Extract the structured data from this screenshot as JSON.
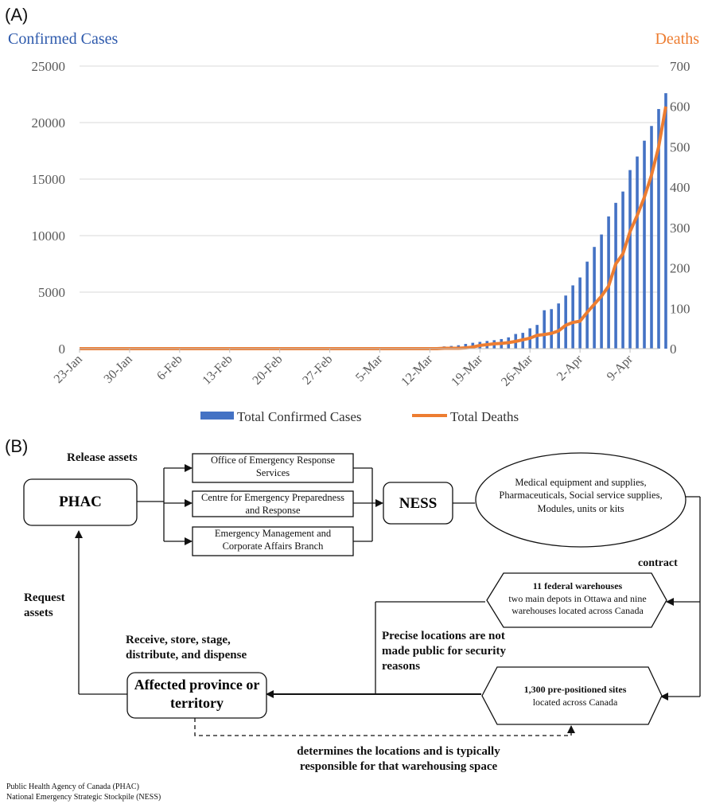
{
  "panel_a_label": "(A)",
  "panel_b_label": "(B)",
  "chart_data": {
    "type": "bar+line",
    "left_axis_title": "Confirmed Cases",
    "right_axis_title": "Deaths",
    "left_ylim": [
      0,
      25000
    ],
    "left_ticks": [
      0,
      5000,
      10000,
      15000,
      20000,
      25000
    ],
    "right_ylim": [
      0,
      700
    ],
    "right_ticks": [
      0,
      100,
      200,
      300,
      400,
      500,
      600,
      700
    ],
    "x_tick_labels": [
      "23-Jan",
      "30-Jan",
      "6-Feb",
      "13-Feb",
      "20-Feb",
      "27-Feb",
      "5-Mar",
      "12-Mar",
      "19-Mar",
      "26-Mar",
      "2-Apr",
      "9-Apr"
    ],
    "grid": true,
    "legend_position": "bottom",
    "colors": {
      "cases": "#4472C4",
      "deaths": "#ED7D31",
      "left_title": "#2E5AAC",
      "right_title": "#ED7D31"
    },
    "series": [
      {
        "name": "Total Confirmed Cases",
        "kind": "bar",
        "start_date": "2020-03-14",
        "values": [
          200,
          240,
          300,
          420,
          520,
          600,
          680,
          750,
          850,
          1000,
          1300,
          1400,
          1800,
          2100,
          3400,
          3500,
          4000,
          4700,
          5600,
          6300,
          7700,
          9000,
          10100,
          11700,
          12900,
          13900,
          15800,
          17000,
          18400,
          19700,
          21200,
          22600
        ]
      },
      {
        "name": "Total Deaths",
        "kind": "line",
        "start_date": "2020-03-14",
        "values": [
          1,
          1,
          1,
          2,
          4,
          8,
          10,
          12,
          13,
          15,
          18,
          22,
          26,
          33,
          35,
          38,
          44,
          58,
          65,
          68,
          90,
          110,
          130,
          155,
          210,
          235,
          290,
          330,
          375,
          430,
          500,
          600
        ]
      }
    ]
  },
  "diagram": {
    "release_assets": "Release assets",
    "phac": "PHAC",
    "office_1": "Office of Emergency Response Services",
    "office_2": "Centre for Emergency Preparedness and Response",
    "office_3": "Emergency Management and Corporate Affairs Branch",
    "ness": "NESS",
    "supplies": "Medical equipment and supplies, Pharmaceuticals, Social service supplies, Modules, units or kits",
    "contract": "contract",
    "warehouses_title": "11 federal warehouses",
    "warehouses_desc": "two main depots in Ottawa and nine warehouses located across Canada",
    "request_assets": "Request assets",
    "receive": "Receive, store, stage, distribute, and dispense",
    "precise": "Precise locations are not made public for security reasons",
    "province": "Affected province or territory",
    "sites_title": "1,300 pre-positioned sites",
    "sites_desc": "located across Canada",
    "determines": "determines the locations and is typically responsible for that warehousing space"
  },
  "footnotes": [
    "Public Health Agency of Canada  (PHAC)",
    "National Emergency Strategic Stockpile  (NESS)"
  ]
}
